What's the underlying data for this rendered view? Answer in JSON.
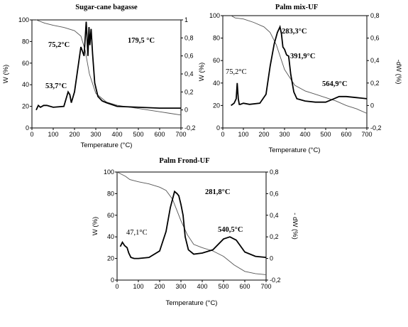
{
  "chart_data": [
    {
      "type": "line",
      "title": "Sugar-cane bagasse",
      "xlabel": "Temperature (°C)",
      "ylabel": "W (%)",
      "y2label": "",
      "xlim": [
        0,
        700
      ],
      "ylim": [
        0,
        100
      ],
      "y2lim": [
        -0.2,
        1.0
      ],
      "xticks": [
        "0",
        "100",
        "200",
        "300",
        "400",
        "500",
        "600",
        "700"
      ],
      "yticks": [
        "0",
        "20",
        "40",
        "60",
        "80",
        "100"
      ],
      "y2ticks": [
        "-0,2",
        "0",
        "0,2",
        "0,4",
        "0,6",
        "0,8",
        "1"
      ],
      "grid": false,
      "series": [
        {
          "role": "W",
          "x": [
            20,
            60,
            100,
            150,
            200,
            230,
            250,
            270,
            300,
            350,
            400,
            450,
            500,
            550,
            600,
            650,
            700
          ],
          "values": [
            100,
            97,
            95,
            93,
            90,
            85,
            72,
            50,
            32,
            24,
            21,
            19.5,
            18,
            16.5,
            15,
            13.5,
            12
          ]
        },
        {
          "role": "dW",
          "x": [
            20,
            30,
            40,
            55,
            70,
            100,
            150,
            170,
            178,
            185,
            200,
            215,
            230,
            245,
            255,
            258,
            263,
            268,
            272,
            278,
            285,
            295,
            310,
            330,
            350,
            400,
            500,
            600,
            700
          ],
          "values": [
            0.0,
            0.05,
            0.03,
            0.05,
            0.05,
            0.03,
            0.04,
            0.2,
            0.17,
            0.08,
            0.2,
            0.45,
            0.7,
            0.6,
            0.98,
            0.85,
            0.6,
            0.92,
            0.72,
            0.9,
            0.62,
            0.3,
            0.15,
            0.1,
            0.08,
            0.04,
            0.03,
            0.02,
            0.02
          ]
        }
      ],
      "annotations": [
        "75,2°C",
        "179,5 °C",
        "53,7°C"
      ]
    },
    {
      "type": "line",
      "title": "Palm mix-UF",
      "xlabel": "Temperature (°C)",
      "ylabel": "W (%)",
      "y2label": "-dW (%)",
      "xlim": [
        0,
        700
      ],
      "ylim": [
        0,
        100
      ],
      "y2lim": [
        -0.2,
        0.8
      ],
      "xticks": [
        "0",
        "100",
        "200",
        "300",
        "400",
        "500",
        "600",
        "700"
      ],
      "yticks": [
        "0",
        "20",
        "40",
        "60",
        "80",
        "100"
      ],
      "y2ticks": [
        "-0,2",
        "0",
        "0,2",
        "0,4",
        "0,6",
        "0,8"
      ],
      "grid": false,
      "series": [
        {
          "role": "W",
          "x": [
            40,
            60,
            100,
            150,
            200,
            230,
            260,
            300,
            350,
            400,
            450,
            500,
            550,
            600,
            650,
            700
          ],
          "values": [
            100,
            98,
            97,
            94,
            90,
            85,
            74,
            52,
            38,
            33,
            30,
            27,
            24,
            20,
            17,
            13
          ]
        },
        {
          "role": "dW",
          "x": [
            40,
            55,
            65,
            70,
            75,
            80,
            85,
            100,
            130,
            180,
            210,
            230,
            250,
            265,
            278,
            285,
            292,
            300,
            310,
            320,
            330,
            345,
            360,
            400,
            450,
            500,
            540,
            565,
            600,
            650,
            700
          ],
          "values": [
            0.0,
            0.02,
            0.06,
            0.2,
            0.06,
            0.01,
            0.01,
            0.02,
            0.01,
            0.02,
            0.1,
            0.35,
            0.55,
            0.65,
            0.7,
            0.64,
            0.52,
            0.5,
            0.45,
            0.44,
            0.28,
            0.12,
            0.06,
            0.04,
            0.03,
            0.03,
            0.06,
            0.08,
            0.08,
            0.07,
            0.06
          ]
        }
      ],
      "annotations": [
        "283,3°C",
        "391,9°C",
        "75,2°C",
        "564,9°C"
      ]
    },
    {
      "type": "line",
      "title": "Palm Frond-UF",
      "xlabel": "Temperature (°C)",
      "ylabel": "W (%)",
      "y2label": "- dW (%)",
      "xlim": [
        0,
        700
      ],
      "ylim": [
        0,
        100
      ],
      "y2lim": [
        -0.2,
        0.8
      ],
      "xticks": [
        "0",
        "100",
        "200",
        "300",
        "400",
        "500",
        "600",
        "700"
      ],
      "yticks": [
        "0",
        "20",
        "40",
        "60",
        "80",
        "100"
      ],
      "y2ticks": [
        "-0,2",
        "0",
        "0,2",
        "0,4",
        "0,6",
        "0,8"
      ],
      "grid": false,
      "series": [
        {
          "role": "W",
          "x": [
            0,
            20,
            40,
            60,
            100,
            150,
            200,
            230,
            260,
            280,
            300,
            330,
            360,
            400,
            450,
            500,
            550,
            600,
            650,
            700
          ],
          "values": [
            100,
            98,
            96,
            93,
            91,
            89,
            86,
            83,
            75,
            65,
            55,
            42,
            33,
            30,
            27,
            22,
            14,
            8,
            6,
            5
          ]
        },
        {
          "role": "dW",
          "x": [
            15,
            25,
            35,
            47,
            55,
            65,
            80,
            100,
            150,
            200,
            230,
            250,
            270,
            282,
            290,
            300,
            310,
            320,
            335,
            360,
            400,
            450,
            500,
            530,
            560,
            600,
            650,
            700
          ],
          "values": [
            0.11,
            0.15,
            0.12,
            0.1,
            0.05,
            0.01,
            0.0,
            0.0,
            0.01,
            0.07,
            0.25,
            0.47,
            0.62,
            0.6,
            0.58,
            0.5,
            0.4,
            0.2,
            0.08,
            0.04,
            0.05,
            0.08,
            0.18,
            0.2,
            0.17,
            0.06,
            0.02,
            0.01
          ]
        }
      ],
      "annotations": [
        "281,8°C",
        "47,1°C",
        "540,5°C"
      ]
    }
  ],
  "panels": [
    {
      "title": "Sugar-cane bagasse",
      "xlabel": "Temperature (°C)",
      "ylabel": "W (%)",
      "y2label": "",
      "xticks": [
        "0",
        "100",
        "200",
        "300",
        "400",
        "500",
        "600",
        "700"
      ],
      "yticks": [
        "0",
        "20",
        "40",
        "60",
        "80",
        "100"
      ],
      "y2ticks": [
        "-0,2",
        "0",
        "0,2",
        "0,4",
        "0,6",
        "0,8",
        "1"
      ],
      "ann": [
        "75,2°C",
        "179,5 °C",
        "53,7°C"
      ]
    },
    {
      "title": "Palm mix-UF",
      "xlabel": "Temperature (°C)",
      "ylabel": "W (%)",
      "y2label": "-dW (%)",
      "xticks": [
        "0",
        "100",
        "200",
        "300",
        "400",
        "500",
        "600",
        "700"
      ],
      "yticks": [
        "0",
        "20",
        "40",
        "60",
        "80",
        "100"
      ],
      "y2ticks": [
        "-0,2",
        "0",
        "0,2",
        "0,4",
        "0,6",
        "0,8"
      ],
      "ann": [
        "283,3°C",
        "391,9°C",
        "75,2°C",
        "564,9°C"
      ]
    },
    {
      "title": "Palm Frond-UF",
      "xlabel": "Temperature (°C)",
      "ylabel": "W (%)",
      "y2label": "- dW (%)",
      "xticks": [
        "0",
        "100",
        "200",
        "300",
        "400",
        "500",
        "600",
        "700"
      ],
      "yticks": [
        "0",
        "20",
        "40",
        "60",
        "80",
        "100"
      ],
      "y2ticks": [
        "-0,2",
        "0",
        "0,2",
        "0,4",
        "0,6",
        "0,8"
      ],
      "ann": [
        "281,8°C",
        "47,1°C",
        "540,5°C"
      ]
    }
  ]
}
